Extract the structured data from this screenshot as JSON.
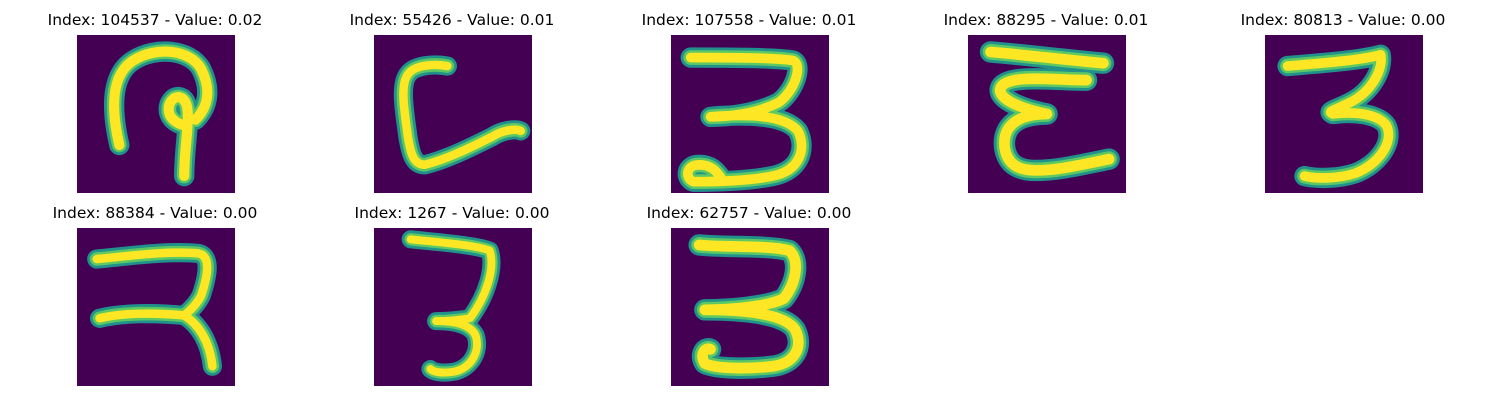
{
  "colors": {
    "background": "#440154",
    "stroke_outer": "#21918c",
    "stroke_mid": "#5ec962",
    "stroke_inner": "#fde725"
  },
  "panels": [
    {
      "title": "Index: 104537 - Value: 0.02"
    },
    {
      "title": "Index: 55426 - Value: 0.01"
    },
    {
      "title": "Index: 107558 - Value: 0.01"
    },
    {
      "title": "Index: 88295 - Value: 0.01"
    },
    {
      "title": "Index: 80813 - Value: 0.00"
    },
    {
      "title": "Index: 88384 - Value: 0.00"
    },
    {
      "title": "Index: 1267 - Value: 0.00"
    },
    {
      "title": "Index: 62757 - Value: 0.00"
    }
  ]
}
